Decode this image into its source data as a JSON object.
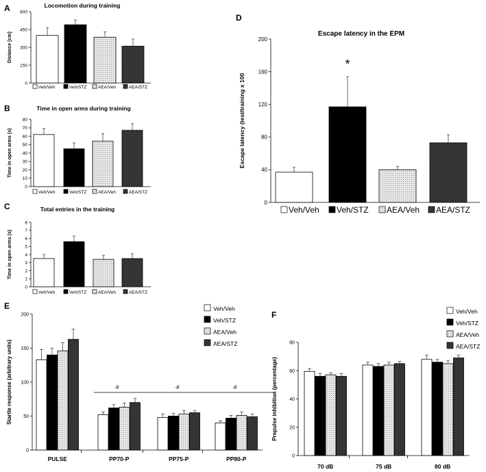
{
  "colors": {
    "veh_veh": "#ffffff",
    "veh_stz": "#000000",
    "aea_veh": "#d9d9d9",
    "aea_stz": "#2b2b2b",
    "axis": "#000000"
  },
  "legend_default": [
    "Veh/Veh",
    "Veh/STZ",
    "AEA/Veh",
    "AEA/STZ"
  ],
  "chart_data": [
    {
      "panel": "A",
      "type": "bar",
      "title": "Locomotion during training",
      "ylabel": "Distance (cm)",
      "categories": [
        "Veh/Veh",
        "Veh/STZ",
        "AEA/Veh",
        "AEA/STZ"
      ],
      "values": [
        400,
        490,
        385,
        310
      ],
      "errors": [
        65,
        40,
        45,
        60
      ],
      "ylim": [
        0,
        600
      ],
      "yticks": [
        "0",
        "150",
        "300",
        "450",
        "600"
      ],
      "legend": [
        "Veh/Veh",
        "Veh/STZ",
        "AEA/Veh",
        "AEA/STZ"
      ],
      "annotations": []
    },
    {
      "panel": "B",
      "type": "bar",
      "title": "Time in open arms during training",
      "ylabel": "Time in open arms (s)",
      "categories": [
        "Veh/Veh",
        "Veh/STZ",
        "AEA/Veh",
        "AEA/STZ"
      ],
      "values": [
        62,
        45,
        54,
        67
      ],
      "errors": [
        7,
        7,
        9,
        8
      ],
      "ylim": [
        0,
        80
      ],
      "yticks": [
        "0",
        "10",
        "20",
        "30",
        "40",
        "50",
        "60",
        "70",
        "80"
      ],
      "legend": [
        "Veh/Veh",
        "Veh/STZ",
        "AEA/Veh",
        "AEA/STZ"
      ],
      "annotations": []
    },
    {
      "panel": "C",
      "type": "bar",
      "title": "Total entries in the training",
      "ylabel": "Time in open arms (s)",
      "categories": [
        "Veh/Veh",
        "Veh/STZ",
        "AEA/Veh",
        "AEA/STZ"
      ],
      "values": [
        3.5,
        5.6,
        3.4,
        3.5
      ],
      "errors": [
        0.5,
        0.7,
        0.5,
        0.6
      ],
      "ylim": [
        0,
        8
      ],
      "yticks": [
        "0",
        "1",
        "2",
        "3",
        "4",
        "5",
        "6",
        "7",
        "8"
      ],
      "legend": [
        "Veh/Veh",
        "Veh/STZ",
        "AEA/Veh",
        "AEA/STZ"
      ],
      "annotations": []
    },
    {
      "panel": "D",
      "type": "bar",
      "title": "Escape latency in the EPM",
      "ylabel": "Escape latency (test/training x 100",
      "categories": [
        "Veh/Veh",
        "Veh/STZ",
        "AEA/Veh",
        "AEA/STZ"
      ],
      "values": [
        37,
        117,
        40,
        73
      ],
      "errors": [
        6,
        37,
        4,
        10
      ],
      "ylim": [
        0,
        200
      ],
      "yticks": [
        "0",
        "40",
        "80",
        "120",
        "160",
        "200"
      ],
      "legend": [
        "Veh/Veh",
        "Veh/STZ",
        "AEA/Veh",
        "AEA/STZ"
      ],
      "annotations": [
        {
          "label": "*",
          "category": "Veh/STZ"
        }
      ]
    },
    {
      "panel": "E",
      "type": "bar",
      "ylabel": "Startle response (arbitrary units)",
      "categories": [
        "PULSE",
        "PP70-P",
        "PP75-P",
        "PP80-P"
      ],
      "series": [
        {
          "name": "Veh/Veh",
          "values": [
            133,
            52,
            48,
            40
          ],
          "errors": [
            15,
            4,
            5,
            3
          ]
        },
        {
          "name": "Veh/STZ",
          "values": [
            140,
            62,
            50,
            47
          ],
          "errors": [
            10,
            5,
            4,
            4
          ]
        },
        {
          "name": "AEA/Veh",
          "values": [
            146,
            63,
            53,
            51
          ],
          "errors": [
            12,
            6,
            5,
            5
          ]
        },
        {
          "name": "AEA/STZ",
          "values": [
            163,
            70,
            55,
            49
          ],
          "errors": [
            15,
            6,
            3,
            4
          ]
        }
      ],
      "ylim": [
        0,
        200
      ],
      "yticks": [
        "0",
        "50",
        "100",
        "150",
        "200"
      ],
      "legend": [
        "Veh/Veh",
        "Veh/STZ",
        "AEA/Veh",
        "AEA/STZ"
      ],
      "annotations": [
        "·#",
        "·#",
        "·#"
      ]
    },
    {
      "panel": "F",
      "type": "bar",
      "ylabel": "Prepulse inhibition (percentage)",
      "categories": [
        "70 dB",
        "75 dB",
        "80 dB"
      ],
      "series": [
        {
          "name": "Veh/Veh",
          "values": [
            59.5,
            64,
            68
          ],
          "errors": [
            2,
            2,
            3
          ]
        },
        {
          "name": "Veh/STZ",
          "values": [
            56,
            63,
            66
          ],
          "errors": [
            2,
            2,
            2
          ]
        },
        {
          "name": "AEA/Veh",
          "values": [
            57,
            64,
            65
          ],
          "errors": [
            1.5,
            2,
            2
          ]
        },
        {
          "name": "AEA/STZ",
          "values": [
            56,
            65,
            69
          ],
          "errors": [
            2,
            1.5,
            2
          ]
        }
      ],
      "ylim": [
        0,
        80
      ],
      "yticks": [
        "0",
        "20",
        "40",
        "60",
        "80"
      ],
      "legend": [
        "Veh/Veh",
        "Veh/STZ",
        "AEA/Veh",
        "AEA/STZ"
      ],
      "annotations": []
    }
  ]
}
